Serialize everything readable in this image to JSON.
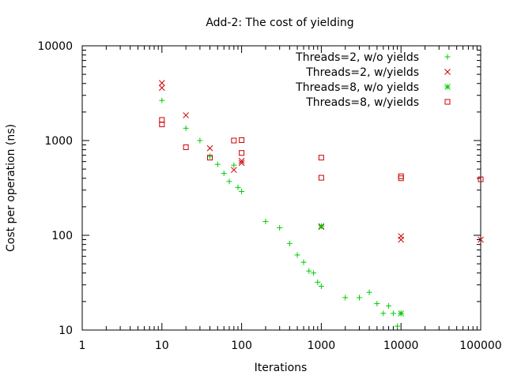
{
  "chart_data": {
    "type": "scatter",
    "title": "Add-2: The cost of yielding",
    "xlabel": "Iterations",
    "ylabel": "Cost per operation (ns)",
    "xscale": "log",
    "yscale": "log",
    "xlim": [
      1,
      100000
    ],
    "ylim": [
      10,
      10000
    ],
    "x_ticks": [
      "1",
      "10",
      "100",
      "1000",
      "10000",
      "100000"
    ],
    "y_ticks": [
      "10",
      "100",
      "1000",
      "10000"
    ],
    "grid": false,
    "legend_position": "top-right",
    "series": [
      {
        "name": "Threads=2, w/o yields",
        "marker": "plus",
        "color": "#00cc00",
        "points": [
          [
            10,
            2650
          ],
          [
            20,
            1350
          ],
          [
            30,
            1000
          ],
          [
            40,
            680
          ],
          [
            50,
            560
          ],
          [
            60,
            450
          ],
          [
            70,
            370
          ],
          [
            80,
            550
          ],
          [
            90,
            320
          ],
          [
            100,
            290
          ],
          [
            200,
            140
          ],
          [
            300,
            120
          ],
          [
            400,
            82
          ],
          [
            500,
            62
          ],
          [
            600,
            52
          ],
          [
            700,
            42
          ],
          [
            800,
            40
          ],
          [
            900,
            32
          ],
          [
            1000,
            29
          ],
          [
            2000,
            22
          ],
          [
            3000,
            22
          ],
          [
            4000,
            25
          ],
          [
            5000,
            19
          ],
          [
            6000,
            15
          ],
          [
            7000,
            18
          ],
          [
            8000,
            15
          ],
          [
            9000,
            11
          ],
          [
            10000,
            15
          ]
        ]
      },
      {
        "name": "Threads=2, w/yields",
        "marker": "cross",
        "color": "#cc0000",
        "points": [
          [
            10,
            4050
          ],
          [
            10,
            3600
          ],
          [
            20,
            1850
          ],
          [
            40,
            830
          ],
          [
            80,
            490
          ],
          [
            100,
            580
          ],
          [
            100,
            610
          ],
          [
            1000,
            123
          ],
          [
            10000,
            98
          ],
          [
            10000,
            90
          ],
          [
            100000,
            90
          ]
        ]
      },
      {
        "name": "Threads=8, w/o yields",
        "marker": "star",
        "color": "#00cc00",
        "points": [
          [
            1000,
            125
          ],
          [
            10000,
            15
          ]
        ]
      },
      {
        "name": "Threads=8, w/yields",
        "marker": "square",
        "color": "#cc0000",
        "points": [
          [
            10,
            1650
          ],
          [
            10,
            1480
          ],
          [
            20,
            850
          ],
          [
            40,
            660
          ],
          [
            80,
            1000
          ],
          [
            100,
            1010
          ],
          [
            100,
            740
          ],
          [
            1000,
            660
          ],
          [
            1000,
            405
          ],
          [
            10000,
            420
          ],
          [
            10000,
            400
          ],
          [
            100000,
            390
          ]
        ]
      }
    ]
  }
}
